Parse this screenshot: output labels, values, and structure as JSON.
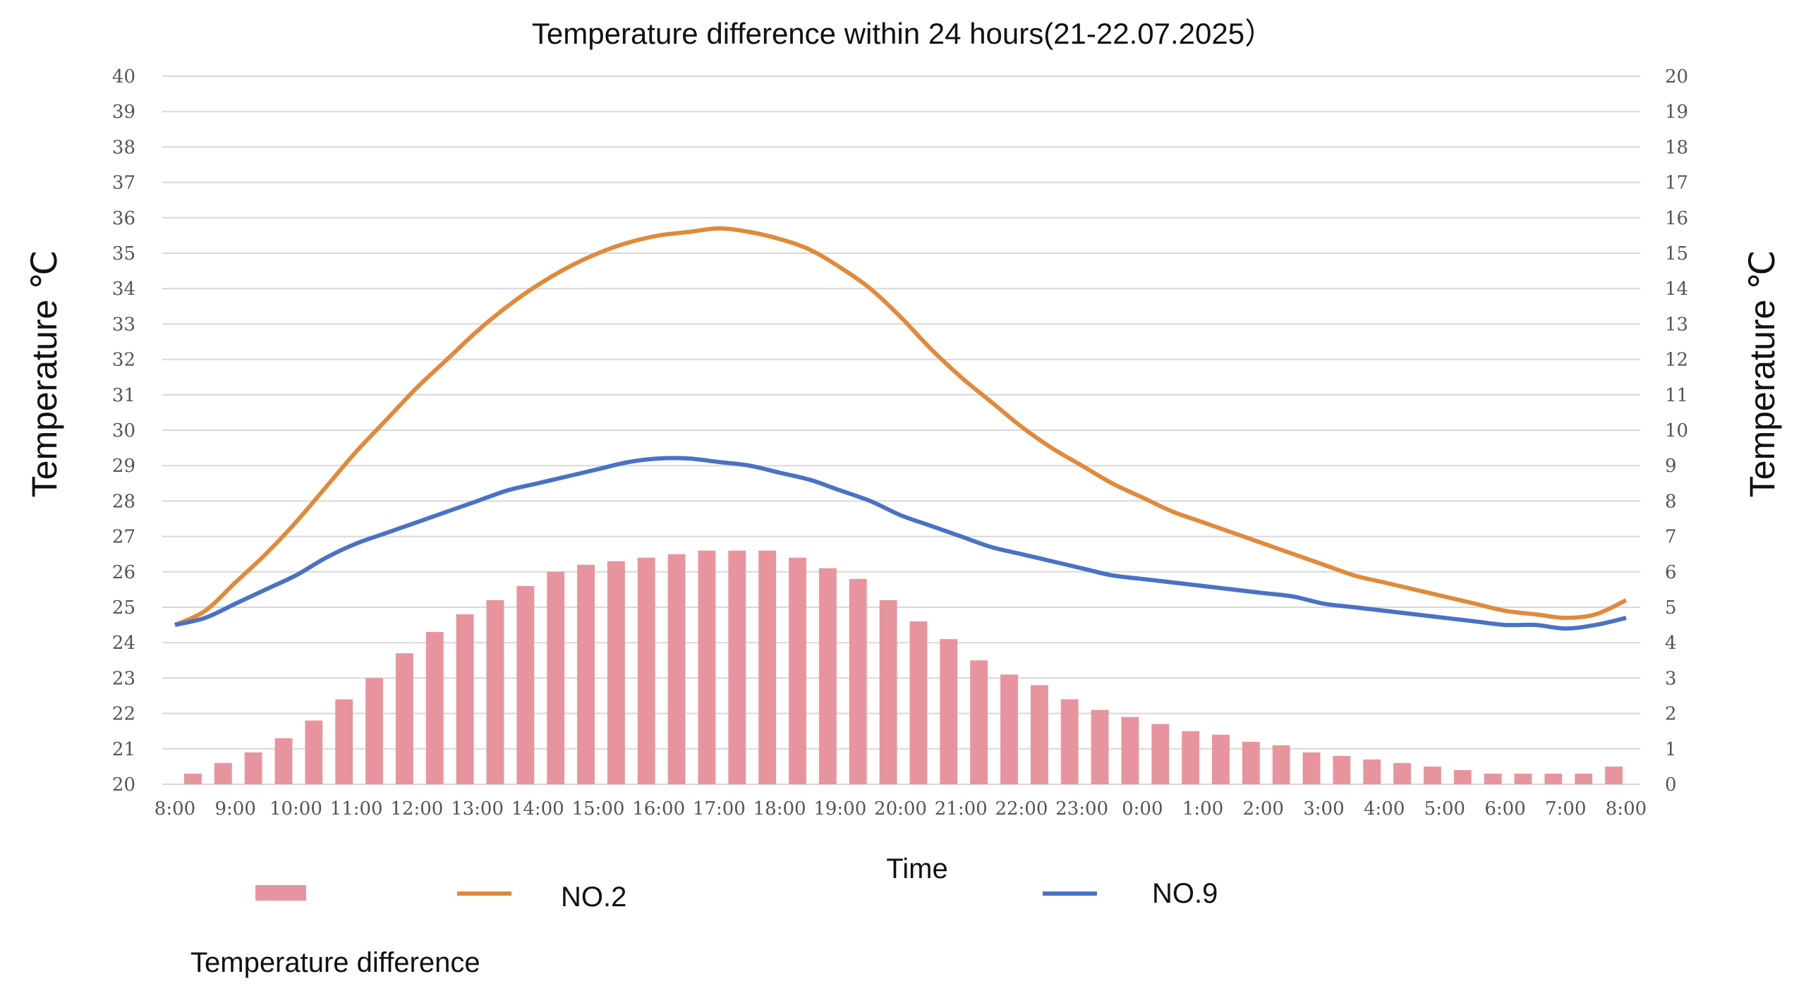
{
  "chart_data": {
    "type": "bar",
    "title": "Temperature difference within 24 hours(21-22.07.2025）",
    "xlabel": "Time",
    "ylabel_left": "Temperature ℃",
    "ylabel_right": "Temperature ℃",
    "ylim_left": [
      20,
      40
    ],
    "ylim_right": [
      0,
      20
    ],
    "y_ticks_left": [
      20,
      21,
      22,
      23,
      24,
      25,
      26,
      27,
      28,
      29,
      30,
      31,
      32,
      33,
      34,
      35,
      36,
      37,
      38,
      39,
      40
    ],
    "y_ticks_right": [
      0,
      1,
      2,
      3,
      4,
      5,
      6,
      7,
      8,
      9,
      10,
      11,
      12,
      13,
      14,
      15,
      16,
      17,
      18,
      19,
      20
    ],
    "x_tick_labels": [
      "8:00",
      "9:00",
      "10:00",
      "11:00",
      "12:00",
      "13:00",
      "14:00",
      "15:00",
      "16:00",
      "17:00",
      "18:00",
      "19:00",
      "20:00",
      "21:00",
      "22:00",
      "23:00",
      "0:00",
      "1:00",
      "2:00",
      "3:00",
      "4:00",
      "5:00",
      "6:00",
      "7:00",
      "8:00"
    ],
    "grid": true,
    "legend_position": "bottom",
    "series": [
      {
        "name": "Temperature difference",
        "type": "bar",
        "axis": "right",
        "color": "#e8949e",
        "values": [
          0.3,
          0.6,
          0.9,
          1.3,
          1.8,
          2.4,
          3.0,
          3.7,
          4.3,
          4.8,
          5.2,
          5.6,
          6.0,
          6.2,
          6.3,
          6.4,
          6.5,
          6.6,
          6.6,
          6.6,
          6.4,
          6.1,
          5.8,
          5.2,
          4.6,
          4.1,
          3.5,
          3.1,
          2.8,
          2.4,
          2.1,
          1.9,
          1.7,
          1.5,
          1.4,
          1.2,
          1.1,
          0.9,
          0.8,
          0.7,
          0.6,
          0.5,
          0.4,
          0.3,
          0.3,
          0.3,
          0.3,
          0.5
        ]
      },
      {
        "name": "NO.2",
        "type": "line",
        "axis": "left",
        "color": "#e08a3a",
        "values": [
          24.5,
          24.9,
          25.7,
          26.5,
          27.4,
          28.4,
          29.4,
          30.3,
          31.2,
          32.0,
          32.8,
          33.5,
          34.1,
          34.6,
          35.0,
          35.3,
          35.5,
          35.6,
          35.7,
          35.6,
          35.4,
          35.1,
          34.6,
          34.0,
          33.2,
          32.3,
          31.5,
          30.8,
          30.1,
          29.5,
          29.0,
          28.5,
          28.1,
          27.7,
          27.4,
          27.1,
          26.8,
          26.5,
          26.2,
          25.9,
          25.7,
          25.5,
          25.3,
          25.1,
          24.9,
          24.8,
          24.7,
          24.8,
          25.2
        ]
      },
      {
        "name": "NO.9",
        "type": "line",
        "axis": "left",
        "color": "#4a72c4",
        "values": [
          24.5,
          24.7,
          25.1,
          25.5,
          25.9,
          26.4,
          26.8,
          27.1,
          27.4,
          27.7,
          28.0,
          28.3,
          28.5,
          28.7,
          28.9,
          29.1,
          29.2,
          29.2,
          29.1,
          29.0,
          28.8,
          28.6,
          28.3,
          28.0,
          27.6,
          27.3,
          27.0,
          26.7,
          26.5,
          26.3,
          26.1,
          25.9,
          25.8,
          25.7,
          25.6,
          25.5,
          25.4,
          25.3,
          25.1,
          25.0,
          24.9,
          24.8,
          24.7,
          24.6,
          24.5,
          24.5,
          24.4,
          24.5,
          24.7
        ]
      }
    ]
  }
}
